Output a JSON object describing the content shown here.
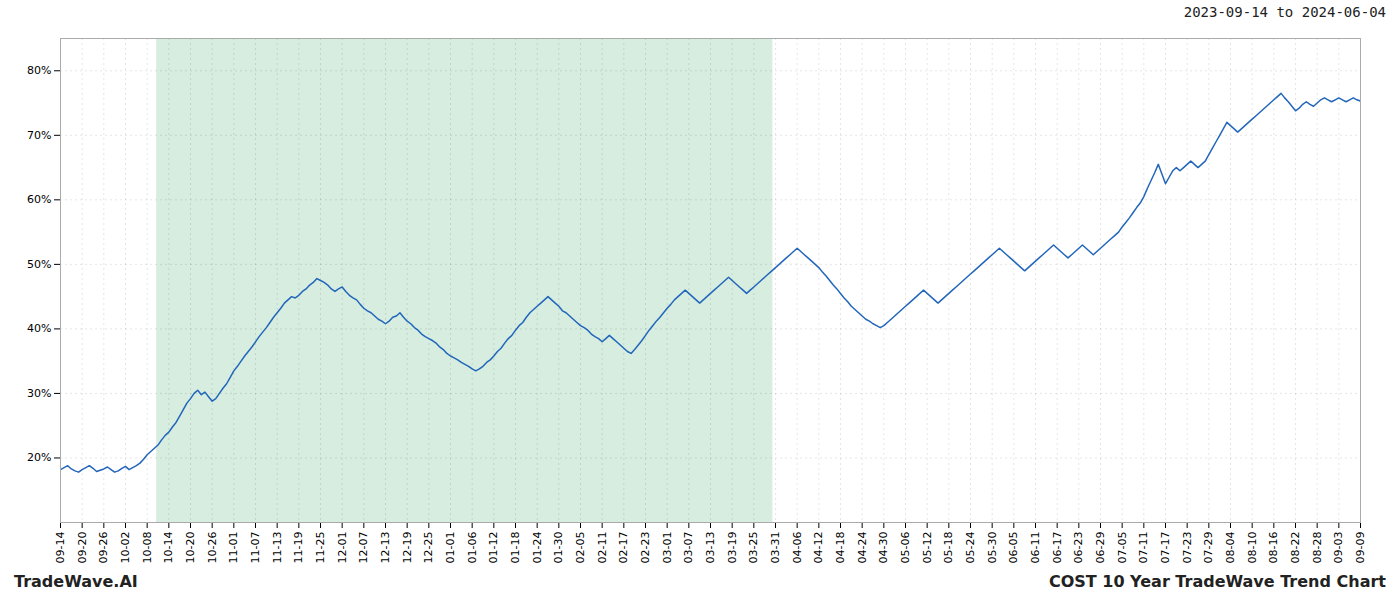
{
  "chart_data": {
    "type": "line",
    "annotations": [
      "2023-09-14 to 2024-06-04",
      "TradeWave.AI",
      "COST 10 Year TradeWave Trend Chart"
    ],
    "color": "#2266bb",
    "grid": true,
    "shaded_range": [
      26.64,
      197.28
    ],
    "shaded_color": "#d6ede0",
    "xlim": [
      0,
      360
    ],
    "xticks": [
      {
        "value": 0,
        "label": "09-14"
      },
      {
        "value": 6,
        "label": "09-20"
      },
      {
        "value": 12,
        "label": "09-26"
      },
      {
        "value": 18,
        "label": "10-02"
      },
      {
        "value": 24,
        "label": "10-08"
      },
      {
        "value": 30,
        "label": "10-14"
      },
      {
        "value": 36,
        "label": "10-20"
      },
      {
        "value": 42,
        "label": "10-26"
      },
      {
        "value": 48,
        "label": "11-01"
      },
      {
        "value": 54,
        "label": "11-07"
      },
      {
        "value": 60,
        "label": "11-13"
      },
      {
        "value": 66,
        "label": "11-19"
      },
      {
        "value": 72,
        "label": "11-25"
      },
      {
        "value": 78,
        "label": "12-01"
      },
      {
        "value": 84,
        "label": "12-07"
      },
      {
        "value": 90,
        "label": "12-13"
      },
      {
        "value": 96,
        "label": "12-19"
      },
      {
        "value": 102,
        "label": "12-25"
      },
      {
        "value": 108,
        "label": "01-01"
      },
      {
        "value": 114,
        "label": "01-06"
      },
      {
        "value": 120,
        "label": "01-12"
      },
      {
        "value": 126,
        "label": "01-18"
      },
      {
        "value": 132,
        "label": "01-24"
      },
      {
        "value": 138,
        "label": "01-30"
      },
      {
        "value": 144,
        "label": "02-05"
      },
      {
        "value": 150,
        "label": "02-11"
      },
      {
        "value": 156,
        "label": "02-17"
      },
      {
        "value": 162,
        "label": "02-23"
      },
      {
        "value": 168,
        "label": "03-01"
      },
      {
        "value": 174,
        "label": "03-07"
      },
      {
        "value": 180,
        "label": "03-13"
      },
      {
        "value": 186,
        "label": "03-19"
      },
      {
        "value": 192,
        "label": "03-25"
      },
      {
        "value": 198,
        "label": "03-31"
      },
      {
        "value": 204,
        "label": "04-06"
      },
      {
        "value": 210,
        "label": "04-12"
      },
      {
        "value": 216,
        "label": "04-18"
      },
      {
        "value": 222,
        "label": "04-24"
      },
      {
        "value": 228,
        "label": "04-30"
      },
      {
        "value": 234,
        "label": "05-06"
      },
      {
        "value": 240,
        "label": "05-12"
      },
      {
        "value": 246,
        "label": "05-18"
      },
      {
        "value": 252,
        "label": "05-24"
      },
      {
        "value": 258,
        "label": "05-30"
      },
      {
        "value": 264,
        "label": "06-05"
      },
      {
        "value": 270,
        "label": "06-11"
      },
      {
        "value": 276,
        "label": "06-17"
      },
      {
        "value": 282,
        "label": "06-23"
      },
      {
        "value": 288,
        "label": "06-29"
      },
      {
        "value": 294,
        "label": "07-05"
      },
      {
        "value": 300,
        "label": "07-11"
      },
      {
        "value": 306,
        "label": "07-17"
      },
      {
        "value": 312,
        "label": "07-23"
      },
      {
        "value": 318,
        "label": "07-29"
      },
      {
        "value": 324,
        "label": "08-04"
      },
      {
        "value": 330,
        "label": "08-10"
      },
      {
        "value": 336,
        "label": "08-16"
      },
      {
        "value": 342,
        "label": "08-22"
      },
      {
        "value": 348,
        "label": "08-28"
      },
      {
        "value": 354,
        "label": "09-03"
      },
      {
        "value": 360,
        "label": "09-09"
      }
    ],
    "ylim": [
      10,
      85
    ],
    "yticks": [
      {
        "value": 20,
        "label": "20%"
      },
      {
        "value": 30,
        "label": "30%"
      },
      {
        "value": 40,
        "label": "40%"
      },
      {
        "value": 50,
        "label": "50%"
      },
      {
        "value": 60,
        "label": "60%"
      },
      {
        "value": 70,
        "label": "70%"
      },
      {
        "value": 80,
        "label": "80%"
      }
    ],
    "values": [
      18.2,
      18.5,
      18.8,
      18.3,
      18.0,
      17.8,
      18.2,
      18.5,
      18.8,
      18.4,
      17.9,
      18.1,
      18.3,
      18.6,
      18.2,
      17.8,
      18.0,
      18.4,
      18.7,
      18.2,
      18.5,
      18.8,
      19.2,
      19.8,
      20.5,
      21.0,
      21.5,
      22.0,
      22.8,
      23.5,
      24.0,
      24.8,
      25.5,
      26.5,
      27.5,
      28.5,
      29.2,
      30.0,
      30.5,
      29.8,
      30.2,
      29.5,
      28.8,
      29.2,
      30.0,
      30.8,
      31.5,
      32.5,
      33.5,
      34.2,
      35.0,
      35.8,
      36.5,
      37.2,
      38.0,
      38.8,
      39.5,
      40.2,
      41.0,
      41.8,
      42.5,
      43.2,
      44.0,
      44.5,
      45.0,
      44.8,
      45.2,
      45.8,
      46.2,
      46.8,
      47.2,
      47.8,
      47.5,
      47.2,
      46.8,
      46.2,
      45.8,
      46.2,
      46.5,
      45.8,
      45.2,
      44.8,
      44.5,
      43.8,
      43.2,
      42.8,
      42.5,
      42.0,
      41.5,
      41.2,
      40.8,
      41.2,
      41.8,
      42.0,
      42.5,
      41.8,
      41.2,
      40.8,
      40.2,
      39.8,
      39.2,
      38.8,
      38.5,
      38.2,
      37.8,
      37.2,
      36.8,
      36.2,
      35.8,
      35.5,
      35.2,
      34.8,
      34.5,
      34.2,
      33.8,
      33.5,
      33.8,
      34.2,
      34.8,
      35.2,
      35.8,
      36.5,
      37.0,
      37.8,
      38.5,
      39.0,
      39.8,
      40.5,
      41.0,
      41.8,
      42.5,
      43.0,
      43.5,
      44.0,
      44.5,
      45.0,
      44.5,
      44.0,
      43.5,
      42.8,
      42.5,
      42.0,
      41.5,
      41.0,
      40.5,
      40.2,
      39.8,
      39.2,
      38.8,
      38.5,
      38.0,
      38.5,
      39.0,
      38.5,
      38.0,
      37.5,
      37.0,
      36.5,
      36.2,
      36.8,
      37.5,
      38.2,
      39.0,
      39.8,
      40.5,
      41.2,
      41.8,
      42.5,
      43.2,
      43.8,
      44.5,
      45.0,
      45.5,
      46.0,
      45.5,
      45.0,
      44.5,
      44.0,
      44.5,
      45.0,
      45.5,
      46.0,
      46.5,
      47.0,
      47.5,
      48.0,
      47.5,
      47.0,
      46.5,
      46.0,
      45.5,
      46.0,
      46.5,
      47.0,
      47.5,
      48.0,
      48.5,
      49.0,
      49.5,
      50.0,
      50.5,
      51.0,
      51.5,
      52.0,
      52.5,
      52.0,
      51.5,
      51.0,
      50.5,
      50.0,
      49.5,
      48.8,
      48.2,
      47.5,
      46.8,
      46.2,
      45.5,
      44.8,
      44.2,
      43.5,
      43.0,
      42.5,
      42.0,
      41.5,
      41.2,
      40.8,
      40.5,
      40.2,
      40.5,
      41.0,
      41.5,
      42.0,
      42.5,
      43.0,
      43.5,
      44.0,
      44.5,
      45.0,
      45.5,
      46.0,
      45.5,
      45.0,
      44.5,
      44.0,
      44.5,
      45.0,
      45.5,
      46.0,
      46.5,
      47.0,
      47.5,
      48.0,
      48.5,
      49.0,
      49.5,
      50.0,
      50.5,
      51.0,
      51.5,
      52.0,
      52.5,
      52.0,
      51.5,
      51.0,
      50.5,
      50.0,
      49.5,
      49.0,
      49.5,
      50.0,
      50.5,
      51.0,
      51.5,
      52.0,
      52.5,
      53.0,
      52.5,
      52.0,
      51.5,
      51.0,
      51.5,
      52.0,
      52.5,
      53.0,
      52.5,
      52.0,
      51.5,
      52.0,
      52.5,
      53.0,
      53.5,
      54.0,
      54.5,
      55.0,
      55.8,
      56.5,
      57.2,
      58.0,
      58.8,
      59.5,
      60.5,
      61.8,
      63.0,
      64.2,
      65.5,
      64.0,
      62.5,
      63.5,
      64.5,
      65.0,
      64.5,
      65.0,
      65.5,
      66.0,
      65.5,
      65.0,
      65.5,
      66.0,
      67.0,
      68.0,
      69.0,
      70.0,
      71.0,
      72.0,
      71.5,
      71.0,
      70.5,
      71.0,
      71.5,
      72.0,
      72.5,
      73.0,
      73.5,
      74.0,
      74.5,
      75.0,
      75.5,
      76.0,
      76.5,
      75.8,
      75.2,
      74.5,
      73.8,
      74.2,
      74.8,
      75.2,
      74.8,
      74.5,
      75.0,
      75.5,
      75.8,
      75.5,
      75.2,
      75.5,
      75.8,
      75.5,
      75.2,
      75.5,
      75.8,
      75.5,
      75.3
    ]
  }
}
